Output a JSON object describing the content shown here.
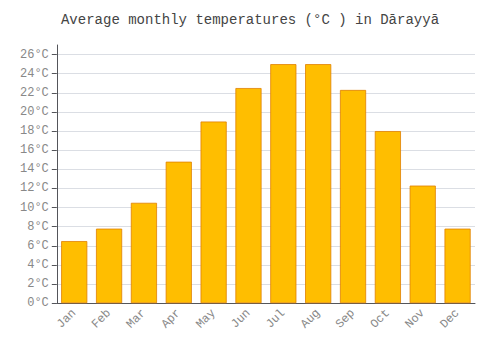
{
  "chart_data": {
    "type": "bar",
    "title": "Average monthly temperatures (°C ) in Dārayyā",
    "categories": [
      "Jan",
      "Feb",
      "Mar",
      "Apr",
      "May",
      "Jun",
      "Jul",
      "Aug",
      "Sep",
      "Oct",
      "Nov",
      "Dec"
    ],
    "values": [
      6.5,
      7.8,
      10.5,
      14.8,
      19.0,
      22.5,
      25.0,
      25.0,
      22.3,
      18.0,
      12.3,
      7.8
    ],
    "color": "#FFBE00",
    "ylim": [
      0,
      27
    ],
    "yticks": [
      {
        "value": 0,
        "label": "0°C"
      },
      {
        "value": 2,
        "label": "2°C"
      },
      {
        "value": 4,
        "label": "4°C"
      },
      {
        "value": 6,
        "label": "6°C"
      },
      {
        "value": 8,
        "label": "8°C"
      },
      {
        "value": 10,
        "label": "10°C"
      },
      {
        "value": 12,
        "label": "12°C"
      },
      {
        "value": 14,
        "label": "14°C"
      },
      {
        "value": 16,
        "label": "16°C"
      },
      {
        "value": 18,
        "label": "18°C"
      },
      {
        "value": 20,
        "label": "20°C"
      },
      {
        "value": 22,
        "label": "22°C"
      },
      {
        "value": 24,
        "label": "24°C"
      },
      {
        "value": 26,
        "label": "26°C"
      }
    ],
    "grid": true
  }
}
